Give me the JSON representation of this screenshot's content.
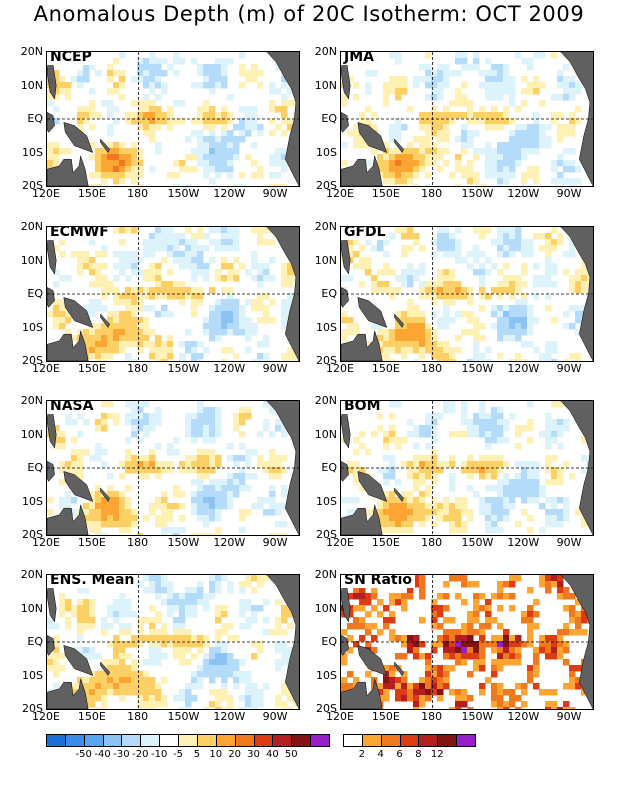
{
  "title": "Anomalous Depth (m) of 20C Isotherm: OCT 2009",
  "lat_labels": [
    "20N",
    "10N",
    "EQ",
    "10S",
    "20S"
  ],
  "lon_labels": [
    "120E",
    "150E",
    "180",
    "150W",
    "120W",
    "90W"
  ],
  "panels": [
    {
      "label": "NCEP"
    },
    {
      "label": "JMA"
    },
    {
      "label": "ECMWF"
    },
    {
      "label": "GFDL"
    },
    {
      "label": "NASA"
    },
    {
      "label": "BOM"
    },
    {
      "label": "ENS. Mean"
    },
    {
      "label": "SN Ratio"
    }
  ],
  "colorbar_anomaly": {
    "colors": [
      "#1e6ed8",
      "#3c8ce6",
      "#5aa5f0",
      "#8cc3f5",
      "#b4dcfa",
      "#ddf3fb",
      "#ffffff",
      "#fff0b4",
      "#fcd064",
      "#fca532",
      "#f0781e",
      "#dc3c14",
      "#b41e1e",
      "#821414",
      "#9620c8"
    ],
    "labels": [
      "-50",
      "-40",
      "-30",
      "-20",
      "-10",
      "-5",
      "5",
      "10",
      "20",
      "30",
      "40",
      "50"
    ]
  },
  "colorbar_sn": {
    "colors": [
      "#ffffff",
      "#fca532",
      "#f0781e",
      "#dc3c14",
      "#b41e1e",
      "#821414",
      "#9620c8"
    ],
    "labels": [
      "2",
      "4",
      "6",
      "8",
      "12"
    ]
  },
  "land_color": "#606060"
}
